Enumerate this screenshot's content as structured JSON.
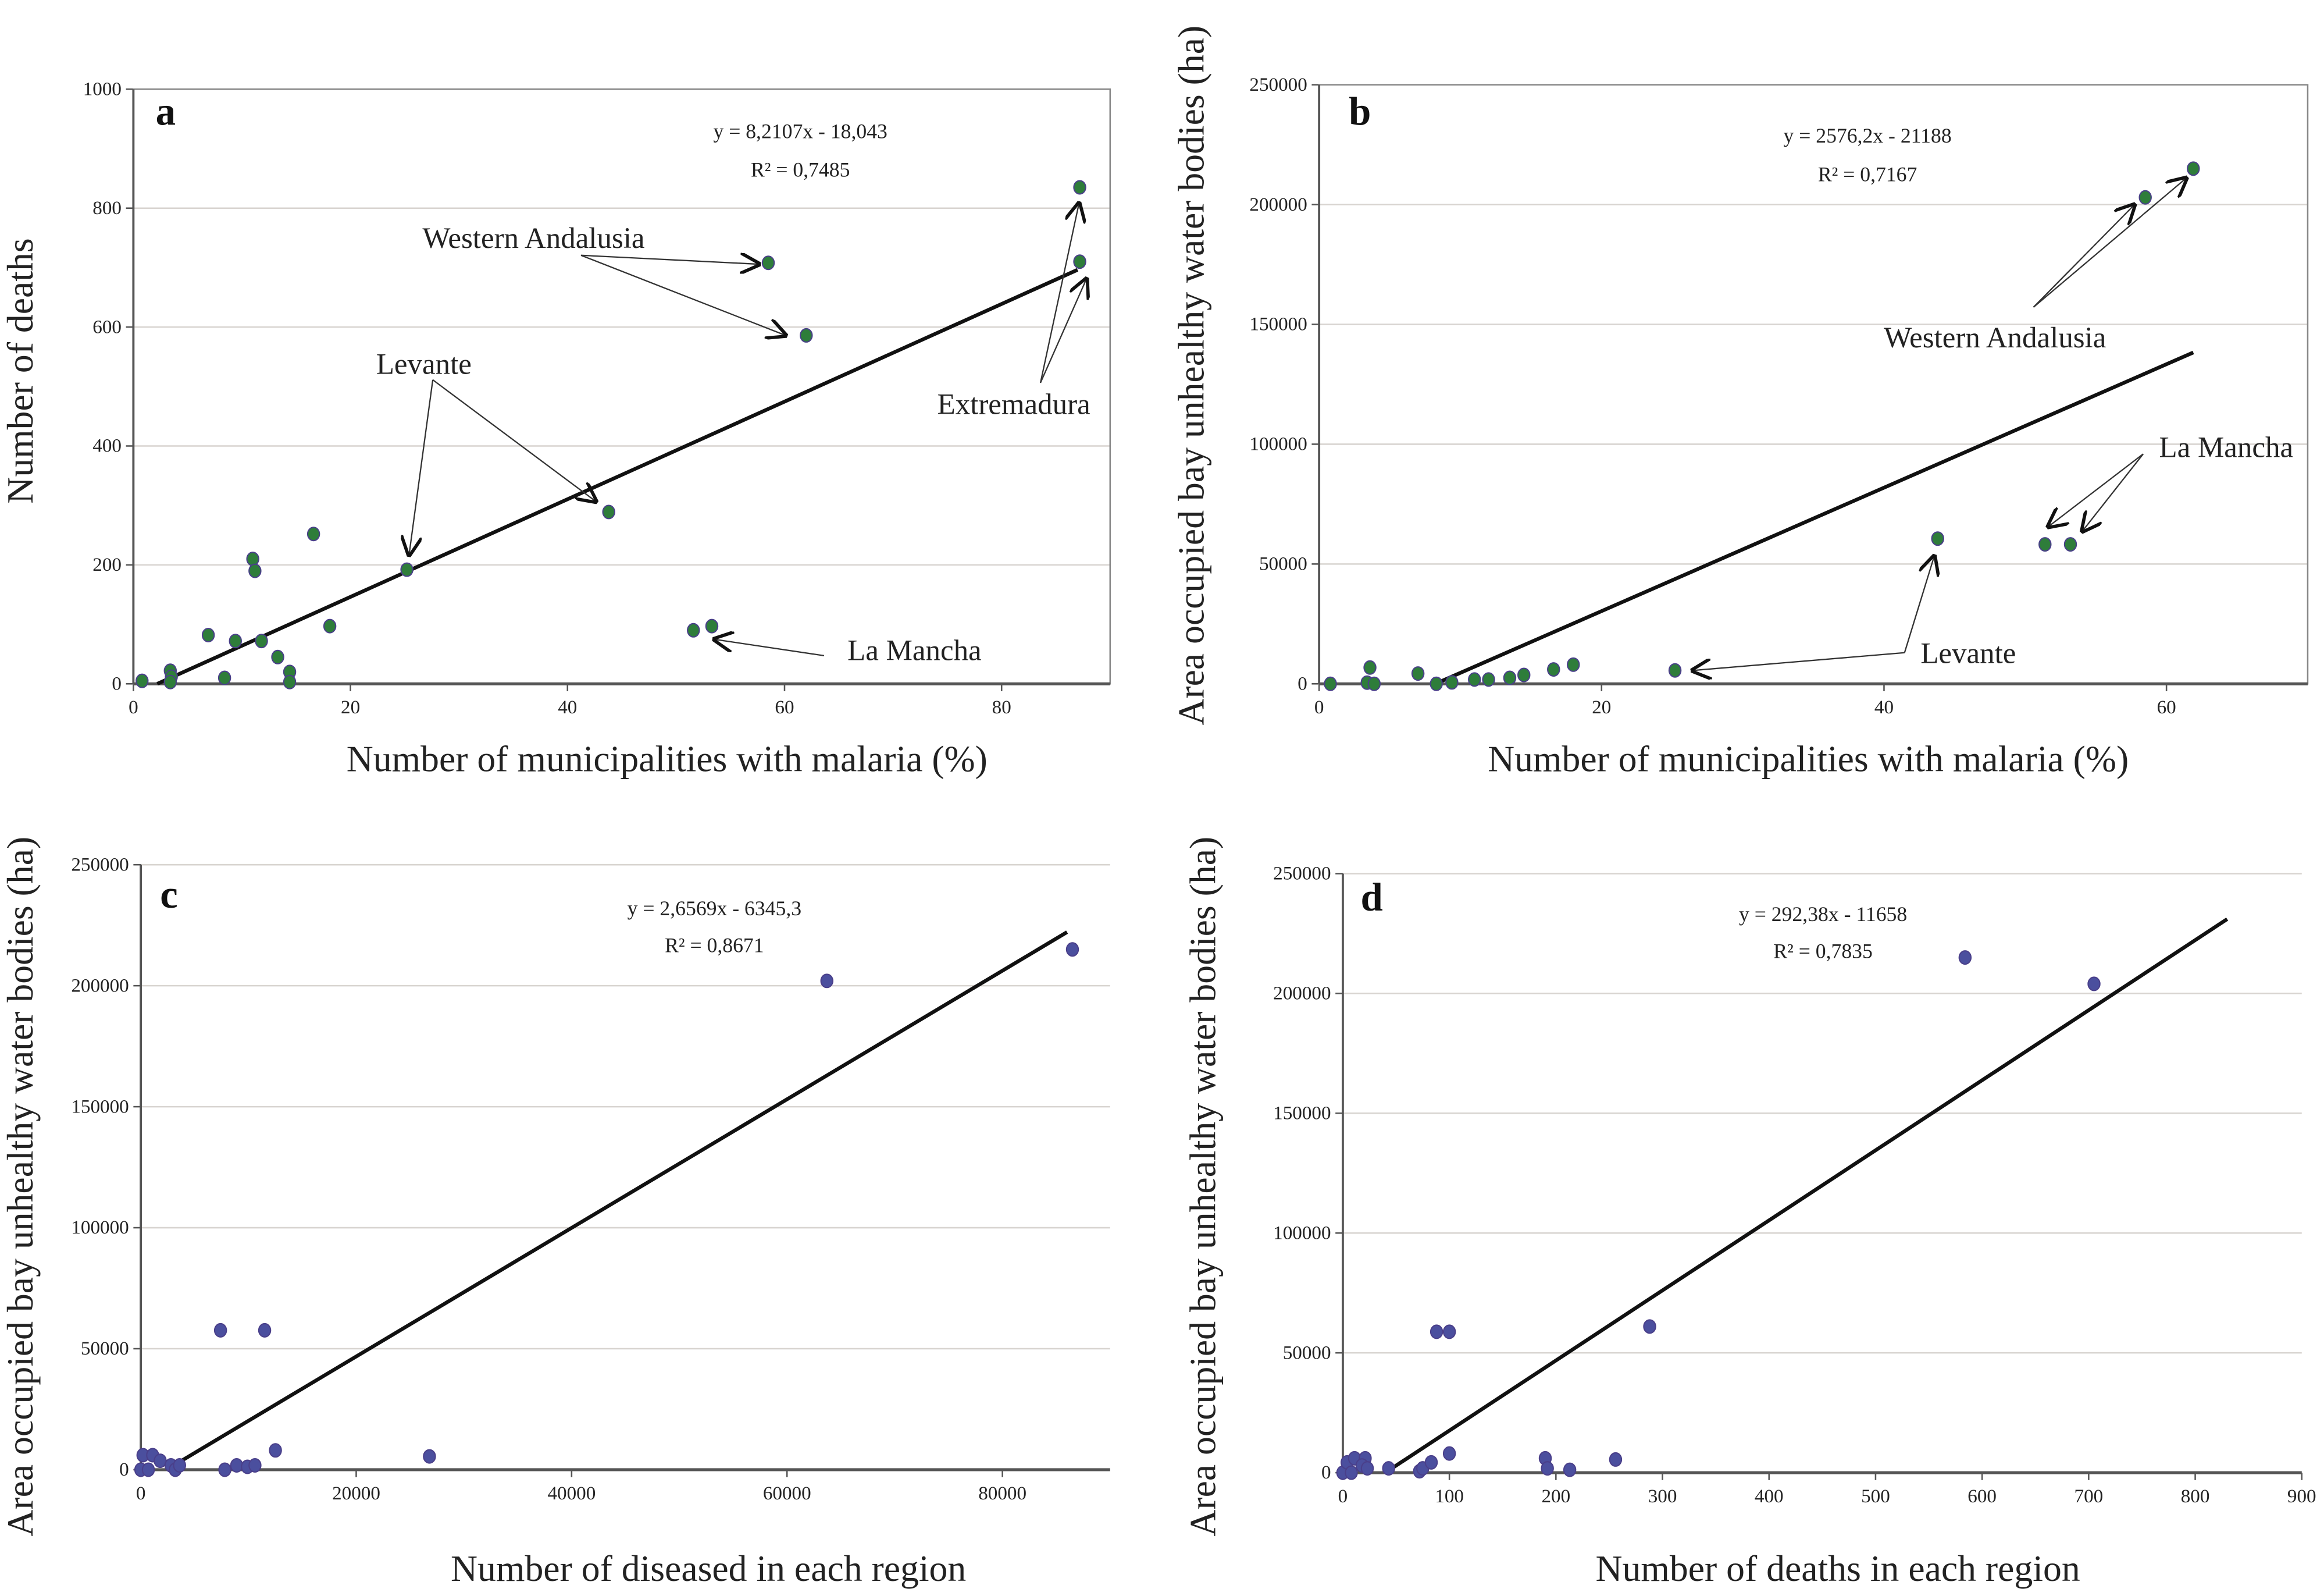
{
  "chart_data": [
    {
      "panel": "a",
      "type": "scatter",
      "xlabel": "Number of municipalities with malaria (%)",
      "ylabel": "Number of deaths",
      "xlim": [
        0,
        90
      ],
      "ylim": [
        0,
        1000
      ],
      "xticks": [
        0,
        20,
        40,
        60,
        80
      ],
      "yticks": [
        0,
        200,
        400,
        600,
        800,
        1000
      ],
      "grid": "horizontal",
      "point_color": "#2e7d3a",
      "equation": "y = 8,2107x - 18,043",
      "r2": "R² = 0,7485",
      "fit": {
        "slope": 8.2107,
        "intercept": -18.043,
        "xrange": [
          2.2,
          87
        ]
      },
      "x": [
        0.8,
        3.4,
        3.5,
        3.4,
        6.9,
        8.4,
        9.4,
        11,
        11.2,
        11.8,
        13.3,
        14.4,
        14.4,
        16.6,
        18.1,
        25.2,
        43.8,
        51.6,
        53.3,
        58.5,
        62,
        87.2,
        87.2
      ],
      "y": [
        5,
        22,
        12,
        3,
        82,
        10,
        72,
        210,
        190,
        72,
        45,
        20,
        3,
        252,
        97,
        192,
        289,
        90,
        97,
        708,
        586,
        835,
        710
      ],
      "annotations": [
        "Western Andalusia",
        "Levante",
        "Extremadura",
        "La Mancha"
      ]
    },
    {
      "panel": "b",
      "type": "scatter",
      "xlabel": "Number of municipalities with malaria (%)",
      "ylabel": "Area occupied bay unhealthy water bodies (ha)",
      "xlim": [
        0,
        70
      ],
      "ylim": [
        0,
        250000
      ],
      "xticks": [
        0,
        20,
        40,
        60
      ],
      "yticks": [
        0,
        50000,
        100000,
        150000,
        200000,
        250000
      ],
      "grid": "horizontal",
      "point_color": "#2e7d3a",
      "equation": "y = 2576,2x - 21188",
      "r2": "R² = 0,7167",
      "fit": {
        "slope": 2576.2,
        "intercept": -21188,
        "xrange": [
          8.2,
          61.9
        ]
      },
      "x": [
        0.8,
        3.4,
        3.6,
        3.9,
        7,
        8.3,
        9.4,
        11,
        12,
        13.5,
        14.5,
        16.6,
        18,
        25.2,
        43.8,
        51.4,
        53.2,
        58.5,
        61.9
      ],
      "y": [
        0,
        500,
        6800,
        0,
        4300,
        0,
        600,
        1800,
        1800,
        2500,
        3700,
        6000,
        8000,
        5600,
        60600,
        58200,
        58200,
        203000,
        215000
      ],
      "annotations": [
        "Western Andalusia",
        "La Mancha",
        "Levante"
      ]
    },
    {
      "panel": "c",
      "type": "scatter",
      "xlabel": "Number of diseased in each region",
      "ylabel": "Area occupied bay unhealthy water bodies (ha)",
      "xlim": [
        0,
        90000
      ],
      "ylim": [
        0,
        250000
      ],
      "xticks": [
        0,
        20000,
        40000,
        60000,
        80000
      ],
      "yticks": [
        0,
        50000,
        100000,
        150000,
        200000,
        250000
      ],
      "grid": "horizontal",
      "point_color": "#4b4f9e",
      "equation": "y = 2,6569x - 6345,3",
      "r2": "R² = 0,8671",
      "fit": {
        "slope": 2.6569,
        "intercept": -6345.3,
        "xrange": [
          2400,
          86000
        ]
      },
      "x": [
        0,
        200,
        700,
        1100,
        1800,
        2800,
        3200,
        3600,
        7800,
        7400,
        8900,
        9900,
        10600,
        11500,
        12500,
        26800,
        63700,
        86500
      ],
      "y": [
        0,
        6000,
        0,
        6000,
        3700,
        1800,
        0,
        1800,
        0,
        57600,
        1800,
        1200,
        1800,
        57600,
        8000,
        5500,
        202000,
        215000
      ],
      "annotations": []
    },
    {
      "panel": "d",
      "type": "scatter",
      "xlabel": "Number of deaths in each region",
      "ylabel": "Area occupied bay unhealthy water bodies (ha)",
      "xlim": [
        0,
        900
      ],
      "ylim": [
        0,
        250000
      ],
      "xticks": [
        0,
        100,
        200,
        300,
        400,
        500,
        600,
        700,
        800,
        900
      ],
      "yticks": [
        0,
        50000,
        100000,
        150000,
        200000,
        250000
      ],
      "grid": "horizontal",
      "point_color": "#4b4f9e",
      "equation": "y = 292,38x - 11658",
      "r2": "R² = 0,7835",
      "fit": {
        "slope": 292.38,
        "intercept": -11658,
        "xrange": [
          40,
          830
        ]
      },
      "x": [
        0,
        4,
        8,
        11,
        21,
        18,
        23,
        43,
        72,
        75,
        83,
        88,
        100,
        100,
        190,
        192,
        213,
        256,
        288,
        584,
        705
      ],
      "y": [
        0,
        4300,
        0,
        6000,
        6000,
        3000,
        1800,
        1800,
        600,
        1800,
        4300,
        58800,
        58800,
        8000,
        6000,
        1800,
        1200,
        5500,
        61000,
        215000,
        204000
      ],
      "annotations": []
    }
  ]
}
